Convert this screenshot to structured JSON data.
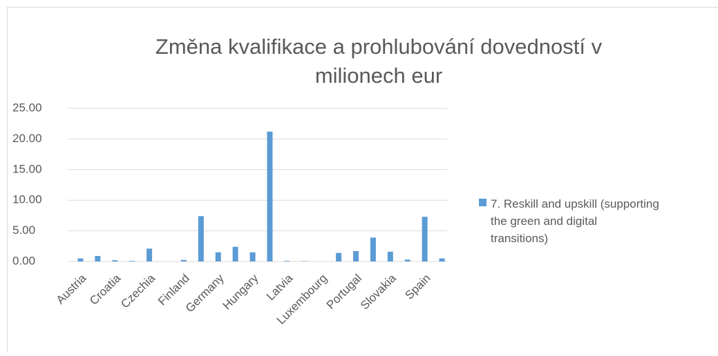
{
  "chart_data": {
    "type": "bar",
    "title": "Změna kvalifikace a prohlubování dovedností v milionech eur",
    "categories": [
      "Austria",
      null,
      "Croatia",
      null,
      "Czechia",
      null,
      "Finland",
      null,
      "Germany",
      null,
      "Hungary",
      null,
      "Latvia",
      null,
      "Luxembourg",
      null,
      "Portugal",
      null,
      "Slovakia",
      null,
      "Spain",
      null
    ],
    "series": [
      {
        "name": "7. Reskill and upskill (supporting the green and digital transitions)",
        "color": "#5b9bd5",
        "values": [
          0.5,
          0.9,
          0.2,
          0.1,
          2.1,
          0.0,
          0.25,
          7.4,
          1.5,
          2.4,
          1.5,
          21.2,
          0.1,
          0.05,
          0.0,
          1.4,
          1.7,
          3.9,
          1.6,
          0.3,
          7.3,
          0.5
        ]
      }
    ],
    "ylim": [
      0,
      25
    ],
    "yticks": [
      {
        "value": 0,
        "label": "0.00"
      },
      {
        "value": 5,
        "label": "5.00"
      },
      {
        "value": 10,
        "label": "10.00"
      },
      {
        "value": 15,
        "label": "15.00"
      },
      {
        "value": 20,
        "label": "20.00"
      },
      {
        "value": 25,
        "label": "25.00"
      }
    ],
    "grid": true,
    "legend": "right"
  }
}
